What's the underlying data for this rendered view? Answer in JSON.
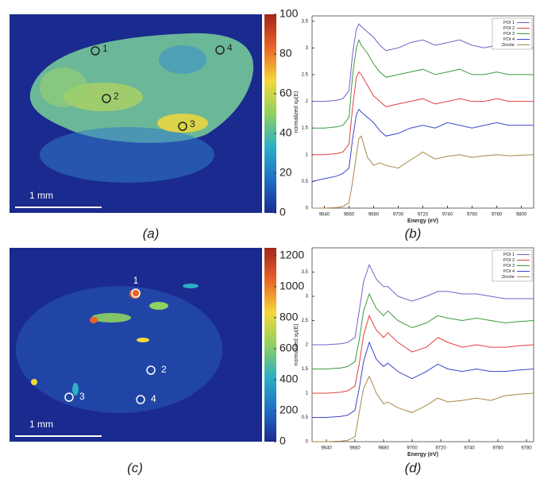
{
  "chart_data": [
    {
      "type": "heatmap",
      "label": "(a)",
      "clim": [
        0,
        100
      ],
      "cticks": [
        0,
        20,
        40,
        60,
        80,
        100
      ],
      "colormap": [
        "#1b2a8e",
        "#1f6fc4",
        "#2bb0c4",
        "#8fd060",
        "#f4d83a",
        "#e8642a",
        "#a3261a"
      ],
      "point_labels": [
        "1",
        "2",
        "3",
        "4"
      ],
      "scale_bar": "1 mm"
    },
    {
      "type": "line",
      "label": "(b)",
      "xlabel": "Energy  (eV)",
      "ylabel": "normalized xμ(E)",
      "xlim": [
        9630,
        9810
      ],
      "ylim": [
        0,
        3.6
      ],
      "xticks": [
        9640,
        9660,
        9680,
        9700,
        9720,
        9740,
        9760,
        9780,
        9800
      ],
      "yticks": [
        0,
        0.5,
        1,
        1.5,
        2,
        2.5,
        3,
        3.5
      ],
      "x": [
        9630,
        9640,
        9650,
        9655,
        9660,
        9663,
        9666,
        9668,
        9670,
        9675,
        9680,
        9685,
        9690,
        9700,
        9710,
        9720,
        9730,
        9740,
        9750,
        9760,
        9770,
        9780,
        9790,
        9800,
        9810
      ],
      "series": [
        {
          "name": "POI 1",
          "color": "#7a5cc8",
          "values": [
            2.0,
            2.0,
            2.02,
            2.05,
            2.2,
            2.9,
            3.35,
            3.45,
            3.4,
            3.3,
            3.2,
            3.05,
            2.95,
            3.0,
            3.1,
            3.15,
            3.05,
            3.1,
            3.15,
            3.05,
            3.0,
            3.05,
            3.05,
            3.0,
            3.0
          ]
        },
        {
          "name": "POI 2",
          "color": "#e04040",
          "values": [
            1.0,
            1.0,
            1.02,
            1.05,
            1.2,
            1.9,
            2.45,
            2.55,
            2.5,
            2.3,
            2.1,
            2.0,
            1.9,
            1.95,
            2.0,
            2.05,
            1.95,
            2.0,
            2.05,
            2.0,
            2.0,
            2.05,
            2.0,
            2.0,
            2.0
          ]
        },
        {
          "name": "POI 3",
          "color": "#3d9a3d",
          "values": [
            1.5,
            1.5,
            1.52,
            1.55,
            1.7,
            2.5,
            3.0,
            3.15,
            3.05,
            2.9,
            2.7,
            2.55,
            2.45,
            2.5,
            2.55,
            2.6,
            2.5,
            2.55,
            2.6,
            2.5,
            2.5,
            2.55,
            2.5,
            2.5,
            2.5
          ]
        },
        {
          "name": "POI 4",
          "color": "#3a46cc",
          "values": [
            0.5,
            0.55,
            0.6,
            0.65,
            0.75,
            1.3,
            1.75,
            1.85,
            1.8,
            1.7,
            1.6,
            1.45,
            1.35,
            1.4,
            1.5,
            1.55,
            1.5,
            1.6,
            1.55,
            1.5,
            1.55,
            1.6,
            1.55,
            1.55,
            1.55
          ]
        },
        {
          "name": "Zincite",
          "color": "#a8864a",
          "values": [
            0,
            0,
            0.01,
            0.03,
            0.1,
            0.5,
            1.0,
            1.3,
            1.35,
            0.95,
            0.8,
            0.85,
            0.8,
            0.75,
            0.9,
            1.05,
            0.92,
            0.97,
            1.0,
            0.95,
            0.98,
            1.0,
            0.98,
            0.99,
            1.0
          ]
        }
      ]
    },
    {
      "type": "heatmap",
      "label": "(c)",
      "clim": [
        0,
        1250
      ],
      "cticks": [
        0,
        200,
        400,
        600,
        800,
        1000,
        1200
      ],
      "colormap": [
        "#1b2a8e",
        "#1f6fc4",
        "#2bb0c4",
        "#8fd060",
        "#f4d83a",
        "#e8642a",
        "#a3261a"
      ],
      "point_labels": [
        "1",
        "2",
        "3",
        "4"
      ],
      "scale_bar": "1 mm"
    },
    {
      "type": "line",
      "label": "(d)",
      "xlabel": "Energy  (eV)",
      "ylabel": "normalized xμ(E)",
      "xlim": [
        9630,
        9785
      ],
      "ylim": [
        0,
        4
      ],
      "xticks": [
        9640,
        9660,
        9680,
        9700,
        9720,
        9740,
        9760,
        9780
      ],
      "yticks": [
        0,
        0.5,
        1,
        1.5,
        2,
        2.5,
        3,
        3.5
      ],
      "x": [
        9630,
        9640,
        9650,
        9655,
        9660,
        9663,
        9666,
        9670,
        9675,
        9680,
        9683,
        9690,
        9700,
        9710,
        9718,
        9725,
        9735,
        9745,
        9755,
        9765,
        9775,
        9785
      ],
      "series": [
        {
          "name": "POI 1",
          "color": "#7a5cc8",
          "values": [
            2,
            2,
            2.02,
            2.05,
            2.15,
            2.7,
            3.3,
            3.65,
            3.35,
            3.2,
            3.2,
            3.0,
            2.9,
            3.0,
            3.1,
            3.1,
            3.05,
            3.05,
            3.0,
            2.95,
            2.95,
            2.95
          ]
        },
        {
          "name": "POI 2",
          "color": "#e04040",
          "values": [
            1,
            1,
            1.02,
            1.05,
            1.15,
            1.6,
            2.2,
            2.6,
            2.3,
            2.15,
            2.25,
            2.05,
            1.85,
            1.95,
            2.15,
            2.05,
            1.95,
            2.0,
            1.95,
            1.95,
            1.98,
            2.0
          ]
        },
        {
          "name": "POI 3",
          "color": "#3d9a3d",
          "values": [
            1.5,
            1.5,
            1.52,
            1.55,
            1.65,
            2.1,
            2.7,
            3.05,
            2.75,
            2.6,
            2.7,
            2.5,
            2.35,
            2.45,
            2.6,
            2.55,
            2.5,
            2.55,
            2.5,
            2.45,
            2.48,
            2.5
          ]
        },
        {
          "name": "POI 4",
          "color": "#3a46cc",
          "values": [
            0.5,
            0.5,
            0.52,
            0.55,
            0.65,
            1.1,
            1.65,
            2.05,
            1.7,
            1.55,
            1.62,
            1.45,
            1.3,
            1.45,
            1.6,
            1.5,
            1.45,
            1.5,
            1.45,
            1.45,
            1.48,
            1.5
          ]
        },
        {
          "name": "Zincite",
          "color": "#a8864a",
          "values": [
            0,
            0,
            0.01,
            0.03,
            0.1,
            0.6,
            1.1,
            1.35,
            1.0,
            0.78,
            0.82,
            0.7,
            0.6,
            0.75,
            0.9,
            0.82,
            0.85,
            0.9,
            0.85,
            0.95,
            0.98,
            1.0
          ]
        }
      ]
    }
  ]
}
